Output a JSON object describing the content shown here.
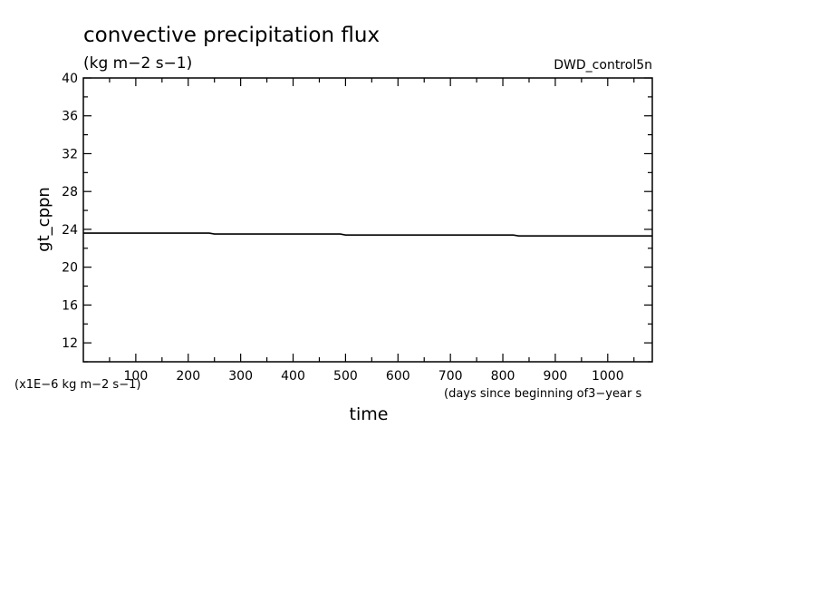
{
  "chart_data": {
    "type": "line",
    "title": "convective precipitation flux",
    "subtitle": "(kg m−2 s−1)",
    "label_right": "DWD_control5n",
    "xlabel": "time",
    "xlabel_units": "(days since beginning of3−year s",
    "ylabel": "gt_cppn",
    "yunits": "(x1E−6 kg m−2 s−1)",
    "xlim": [
      0,
      1085
    ],
    "ylim": [
      10,
      40
    ],
    "xticks": [
      100,
      200,
      300,
      400,
      500,
      600,
      700,
      800,
      900,
      1000
    ],
    "yticks": [
      12,
      16,
      20,
      24,
      28,
      32,
      36,
      40
    ],
    "grid": false,
    "series": [
      {
        "color": "#000000",
        "x": [
          0,
          240,
          250,
          490,
          500,
          820,
          830,
          1085
        ],
        "y": [
          23.6,
          23.6,
          23.5,
          23.5,
          23.4,
          23.4,
          23.3,
          23.3
        ]
      }
    ]
  }
}
